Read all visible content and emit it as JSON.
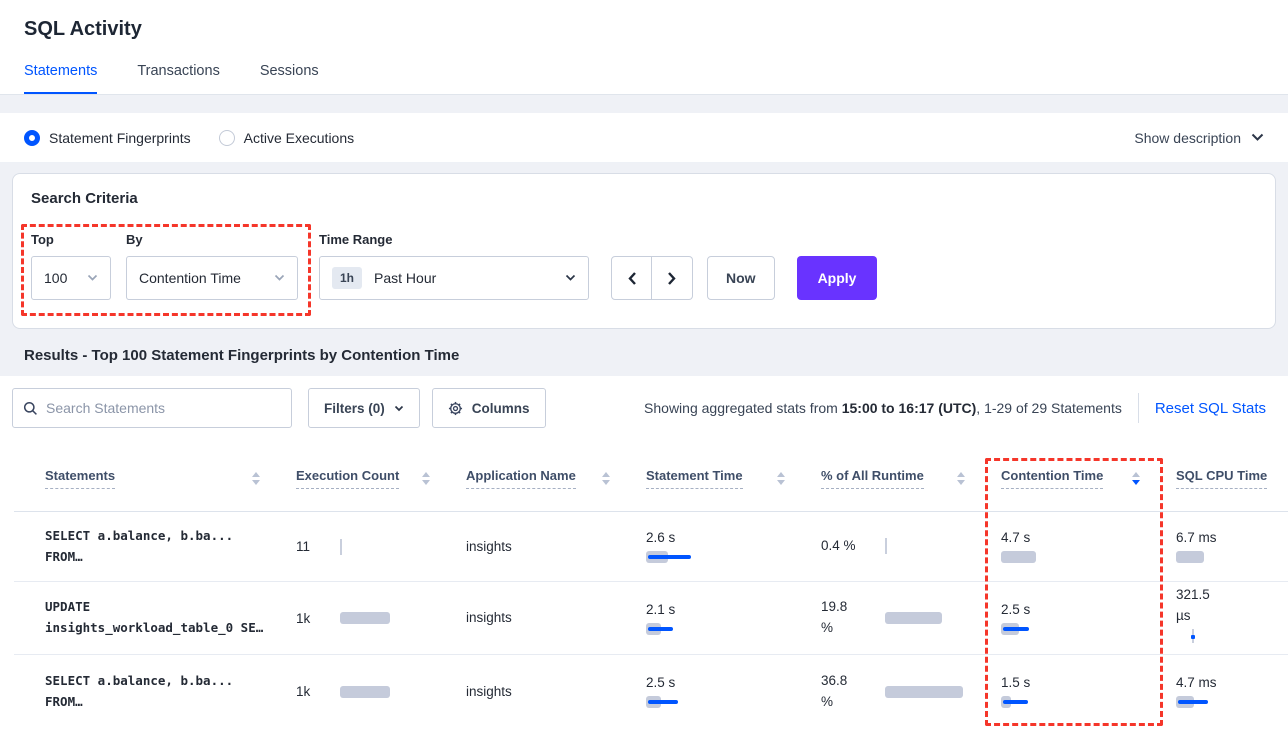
{
  "colors": {
    "accent_blue": "#0055FF",
    "apply_purple": "#6933FF",
    "annotation_red": "#F5362A",
    "bar_gray": "#C5CBDB",
    "text_dark": "#242A35"
  },
  "header": {
    "title": "SQL Activity",
    "tabs": [
      {
        "label": "Statements",
        "active": true
      },
      {
        "label": "Transactions",
        "active": false
      },
      {
        "label": "Sessions",
        "active": false
      }
    ]
  },
  "view_toggle": {
    "options": [
      {
        "label": "Statement Fingerprints",
        "selected": true
      },
      {
        "label": "Active Executions",
        "selected": false
      }
    ],
    "show_description_label": "Show description"
  },
  "search_criteria": {
    "heading": "Search Criteria",
    "top_label": "Top",
    "top_value": "100",
    "by_label": "By",
    "by_value": "Contention Time",
    "time_range_label": "Time Range",
    "time_range_badge": "1h",
    "time_range_value": "Past Hour",
    "now_label": "Now",
    "apply_label": "Apply"
  },
  "results": {
    "heading": "Results - Top 100 Statement Fingerprints by Contention Time",
    "search_placeholder": "Search Statements",
    "filters_label": "Filters (0)",
    "columns_label": "Columns",
    "stats_prefix": "Showing aggregated stats from ",
    "stats_range": "15:00 to 16:17 (UTC)",
    "stats_suffix": ", 1-29 of 29 Statements",
    "reset_label": "Reset SQL Stats"
  },
  "table": {
    "columns": [
      {
        "label": "Statements"
      },
      {
        "label": "Execution Count"
      },
      {
        "label": "Application Name"
      },
      {
        "label": "Statement Time"
      },
      {
        "label": "% of All Runtime"
      },
      {
        "label": "Contention Time",
        "sorted": "desc"
      },
      {
        "label": "SQL CPU Time"
      }
    ],
    "rows": [
      {
        "statement": {
          "line1": "SELECT a.balance, b.ba...",
          "line2": "FROM…"
        },
        "execution": {
          "value": "11",
          "bar_gray": 0
        },
        "application": "insights",
        "statement_time": {
          "value": "2.6 s",
          "bar_gray": 22,
          "bar_blue": 43
        },
        "pct_runtime": {
          "line1": "0.4 %",
          "line2": "",
          "bar_gray": 0
        },
        "contention_time": {
          "value": "4.7 s",
          "bar_gray": 35,
          "bar_blue": 0
        },
        "sql_cpu": {
          "line1": "6.7 ms",
          "line2": "",
          "bar_gray": 28,
          "bar_blue": 0
        }
      },
      {
        "statement": {
          "line1": "UPDATE",
          "line2": "insights_workload_table_0 SE…"
        },
        "execution": {
          "value": "1k",
          "bar_gray": 50
        },
        "application": "insights",
        "statement_time": {
          "value": "2.1 s",
          "bar_gray": 15,
          "bar_blue": 25
        },
        "pct_runtime": {
          "line1": "19.8",
          "line2": "%",
          "bar_gray": 57
        },
        "contention_time": {
          "value": "2.5 s",
          "bar_gray": 18,
          "bar_blue": 26
        },
        "sql_cpu": {
          "line1": "321.5",
          "line2": "µs",
          "bar_gray": 0,
          "bar_blue": 0
        }
      },
      {
        "statement": {
          "line1": "SELECT a.balance, b.ba...",
          "line2": "FROM…"
        },
        "execution": {
          "value": "1k",
          "bar_gray": 50
        },
        "application": "insights",
        "statement_time": {
          "value": "2.5 s",
          "bar_gray": 15,
          "bar_blue": 30
        },
        "pct_runtime": {
          "line1": "36.8",
          "line2": "%",
          "bar_gray": 78
        },
        "contention_time": {
          "value": "1.5 s",
          "bar_gray": 10,
          "bar_blue": 25
        },
        "sql_cpu": {
          "line1": "4.7 ms",
          "line2": "",
          "bar_gray": 18,
          "bar_blue": 30
        }
      }
    ]
  }
}
